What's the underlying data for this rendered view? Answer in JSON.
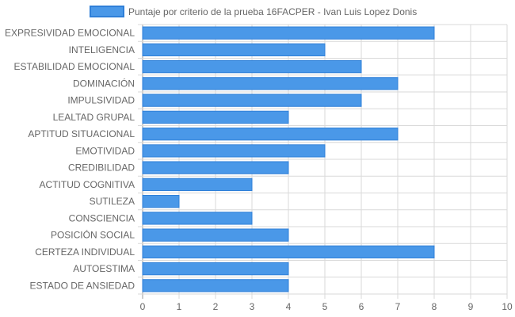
{
  "chart_data": {
    "type": "bar",
    "orientation": "horizontal",
    "categories": [
      "EXPRESIVIDAD EMOCIONAL",
      "INTELIGENCIA",
      "ESTABILIDAD EMOCIONAL",
      "DOMINACIÓN",
      "IMPULSIVIDAD",
      "LEALTAD GRUPAL",
      "APTITUD SITUACIONAL",
      "EMOTIVIDAD",
      "CREDIBILIDAD",
      "ACTITUD COGNITIVA",
      "SUTILEZA",
      "CONSCIENCIA",
      "POSICIÓN SOCIAL",
      "CERTEZA INDIVIDUAL",
      "AUTOESTIMA",
      "ESTADO DE ANSIEDAD"
    ],
    "series": [
      {
        "name": "Puntaje por criterio de la prueba 16FACPER - Ivan Luis Lopez Donis",
        "values": [
          8,
          5,
          6,
          7,
          6,
          4,
          7,
          5,
          4,
          3,
          1,
          3,
          4,
          8,
          4,
          4
        ]
      }
    ],
    "xlim": [
      0,
      10
    ],
    "x_ticks": [
      0,
      1,
      2,
      3,
      4,
      5,
      6,
      7,
      8,
      9,
      10
    ],
    "grid": true,
    "legend_position": "top",
    "colors": {
      "bar_fill": "#4a98e8",
      "bar_stroke": "#2f7fd8",
      "grid": "#d9d9d9",
      "axis": "#999999",
      "text": "#666666"
    }
  }
}
